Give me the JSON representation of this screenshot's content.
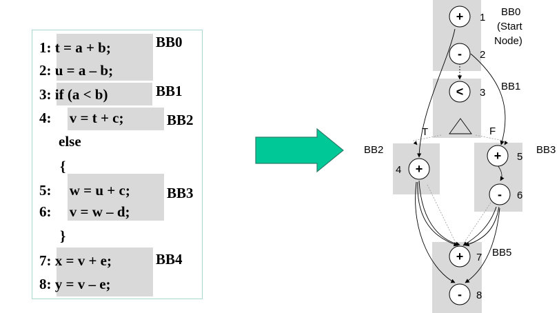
{
  "code": {
    "lines": [
      "1: t = a + b;",
      "2: u = a – b;",
      "3: if (a < b)",
      "4:     v = t + c;",
      "else",
      "{",
      "5:     w = u + c;",
      "6:     v = w – d;",
      "}",
      "7: x = v + e;",
      "8: y = v – e;"
    ],
    "block_labels": [
      "BB0",
      "BB1",
      "BB2",
      "BB3",
      "BB4"
    ]
  },
  "graph": {
    "blocks": {
      "bb0": "BB0",
      "bb0_sub1": "(Start",
      "bb0_sub2": "Node)",
      "bb1": "BB1",
      "bb2": "BB2",
      "bb3": "BB3",
      "bb5": "BB5"
    },
    "nodes": [
      {
        "op": "+",
        "num": "1"
      },
      {
        "op": "-",
        "num": "2"
      },
      {
        "op": "<",
        "num": "3"
      },
      {
        "op": "+",
        "num": "4"
      },
      {
        "op": "+",
        "num": "5"
      },
      {
        "op": "-",
        "num": "6"
      },
      {
        "op": "+",
        "num": "7"
      },
      {
        "op": "-",
        "num": "8"
      }
    ],
    "branch_true": "T",
    "branch_false": "F"
  },
  "colors": {
    "block_fill": "#d9d9d9",
    "arrow_fill": "#00c896",
    "panel_border": "#a6d8d0"
  }
}
